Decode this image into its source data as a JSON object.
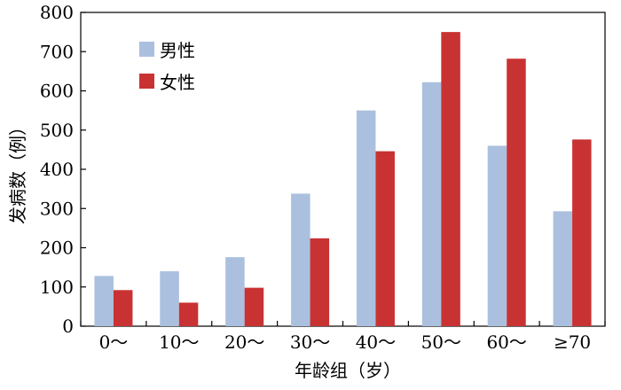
{
  "chart_data": {
    "type": "bar",
    "categories": [
      "0～",
      "10～",
      "20～",
      "30～",
      "40～",
      "50～",
      "60～",
      "≥70"
    ],
    "series": [
      {
        "name": "男性",
        "color": "#aac0de",
        "values": [
          128,
          140,
          176,
          338,
          550,
          622,
          460,
          293
        ]
      },
      {
        "name": "女性",
        "color": "#c93232",
        "values": [
          92,
          60,
          98,
          224,
          446,
          750,
          682,
          476
        ]
      }
    ],
    "xlabel": "年龄组（岁）",
    "ylabel": "发病数（例）",
    "ylim": [
      0,
      800
    ],
    "yticks": [
      0,
      100,
      200,
      300,
      400,
      500,
      600,
      700,
      800
    ],
    "grid": false,
    "legend_position": "top-left"
  }
}
